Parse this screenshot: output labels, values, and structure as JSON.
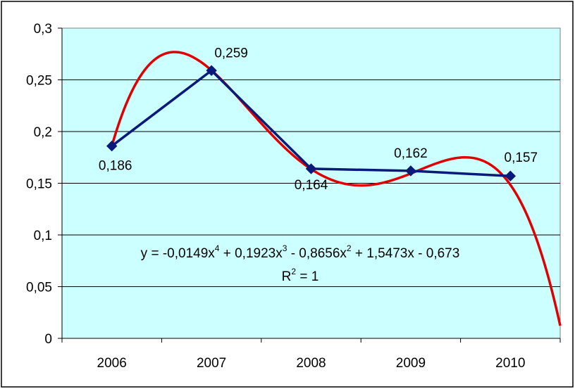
{
  "chart_data": {
    "type": "line",
    "categories": [
      "2006",
      "2007",
      "2008",
      "2009",
      "2010"
    ],
    "series": [
      {
        "values": [
          0.186,
          0.259,
          0.164,
          0.162,
          0.157
        ],
        "color": "#0a1a7a",
        "marker": "diamond"
      }
    ],
    "data_labels": [
      "0,186",
      "0,259",
      "0,164",
      "0,162",
      "0,157"
    ],
    "trendline": {
      "type": "polynomial",
      "order": 4,
      "coefficients": [
        -0.0149,
        0.1923,
        -0.8656,
        1.5473,
        -0.673
      ],
      "color": "#e00000",
      "x_extent": [
        1,
        5.5
      ]
    },
    "equation": {
      "prefix": "y = -0,0149x",
      "exp1": "4",
      "part2": " + 0,1923x",
      "exp2": "3",
      "part3": " - 0,8656x",
      "exp3": "2",
      "part4": " + 1,5473x - 0,673"
    },
    "r_squared": {
      "prefix": "R",
      "exp": "2",
      "suffix": " = 1"
    },
    "y_ticks": [
      "0",
      "0,05",
      "0,1",
      "0,15",
      "0,2",
      "0,25",
      "0,3"
    ],
    "ylim": [
      0,
      0.3
    ],
    "grid": true,
    "plot_background": "#ccffff",
    "legend": "none"
  }
}
